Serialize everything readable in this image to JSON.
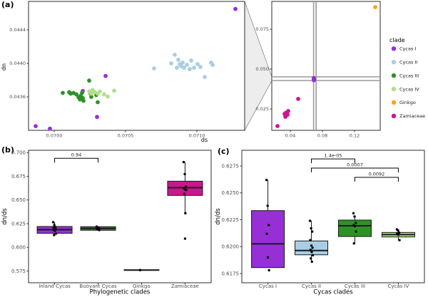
{
  "figure": {
    "panel_a_label": "(a)",
    "panel_b_label": "(b)",
    "panel_c_label": "(c)",
    "background": "#ffffff"
  },
  "palette": {
    "Cycas I": "#962FD6",
    "Cycas II": "#A9CEE4",
    "Cycas III": "#2E9125",
    "Cycas IV": "#B2DF8A",
    "Ginkgo": "#FFA40D",
    "Zamiaceae": "#CC1590"
  },
  "legend": {
    "title": "clade",
    "entries": [
      "Cycas I",
      "Cycas II",
      "Cycas III",
      "Cycas IV",
      "Ginkgo",
      "Zamiaceae"
    ]
  },
  "chart_data": [
    {
      "id": "a_main",
      "type": "scatter",
      "xlabel": "ds",
      "ylabel": "dn",
      "xlim": [
        0.06982,
        0.071335
      ],
      "ylim": [
        0.0432,
        0.04474
      ],
      "xticks": [
        0.07,
        0.0705,
        0.071
      ],
      "xtick_labels": [
        "0.0700",
        "0.0705",
        "0.0710"
      ],
      "yticks": [
        0.0436,
        0.044,
        0.0444
      ],
      "ytick_labels": [
        "0.0436",
        "0.0440",
        "0.0444"
      ],
      "series": [
        {
          "name": "Cycas I",
          "points": [
            [
              0.06987,
              0.04325
            ],
            [
              0.06997,
              0.04322
            ],
            [
              0.0702,
              0.04367
            ],
            [
              0.07036,
              0.04385
            ],
            [
              0.0703,
              0.04336
            ],
            [
              0.07127,
              0.04465
            ]
          ]
        },
        {
          "name": "Cycas III",
          "points": [
            [
              0.07006,
              0.043647
            ],
            [
              0.070105,
              0.043656
            ],
            [
              0.070115,
              0.043639
            ],
            [
              0.070135,
              0.043647
            ],
            [
              0.070155,
              0.04363
            ],
            [
              0.07017,
              0.043596
            ],
            [
              0.07018,
              0.04357
            ],
            [
              0.070185,
              0.043613
            ],
            [
              0.070195,
              0.043647
            ],
            [
              0.0702,
              0.043587
            ],
            [
              0.070205,
              0.043553
            ],
            [
              0.070245,
              0.043794
            ],
            [
              0.070255,
              0.043639
            ],
            [
              0.070295,
              0.043622
            ],
            [
              0.070305,
              0.043536
            ],
            [
              0.07026,
              0.0436
            ]
          ]
        },
        {
          "name": "Cycas IV",
          "points": [
            [
              0.070245,
              0.043664
            ],
            [
              0.07026,
              0.043639
            ],
            [
              0.07027,
              0.043682
            ],
            [
              0.070285,
              0.043656
            ],
            [
              0.070305,
              0.043639
            ],
            [
              0.07032,
              0.043664
            ],
            [
              0.07035,
              0.04363
            ],
            [
              0.070375,
              0.043604
            ],
            [
              0.07042,
              0.043673
            ]
          ]
        },
        {
          "name": "Cycas II",
          "points": [
            [
              0.0707,
              0.04394
            ],
            [
              0.07082,
              0.044
            ],
            [
              0.070845,
              0.044103
            ],
            [
              0.07086,
              0.043948
            ],
            [
              0.07087,
              0.044043
            ],
            [
              0.07088,
              0.043991
            ],
            [
              0.07089,
              0.043966
            ],
            [
              0.0709,
              0.044009
            ],
            [
              0.07091,
              0.043948
            ],
            [
              0.07093,
              0.043983
            ],
            [
              0.07095,
              0.043931
            ],
            [
              0.07096,
              0.044034
            ],
            [
              0.07098,
              0.043948
            ],
            [
              0.071005,
              0.043991
            ],
            [
              0.071025,
              0.043957
            ],
            [
              0.071055,
              0.043837
            ],
            [
              0.0711,
              0.044009
            ],
            [
              0.07111,
              0.043983
            ]
          ]
        }
      ]
    },
    {
      "id": "a_inset",
      "type": "scatter",
      "xlabel": "",
      "ylabel": "",
      "xlim": [
        0.01689,
        0.152
      ],
      "ylim": [
        0.01161,
        0.09241
      ],
      "xticks": [
        0.04,
        0.08,
        0.12
      ],
      "xtick_labels": [
        "0.04",
        "0.08",
        "0.12"
      ],
      "yticks": [
        0.025,
        0.05,
        0.075
      ],
      "ytick_labels": [
        "0.025",
        "0.050",
        "0.075"
      ],
      "zoom_box": {
        "x0": 0.06982,
        "x1": 0.071335,
        "y0": 0.0432,
        "y1": 0.04474
      },
      "series": [
        {
          "name": "Cycas I",
          "points": [
            [
              0.0693,
              0.043
            ],
            [
              0.0693,
              0.0437
            ],
            [
              0.0693,
              0.0444
            ],
            [
              0.0694,
              0.0433
            ],
            [
              0.0692,
              0.044
            ]
          ]
        },
        {
          "name": "Ginkgo",
          "points": [
            [
              0.1458,
              0.0888
            ]
          ]
        },
        {
          "name": "Zamiaceae",
          "points": [
            [
              0.0498,
              0.0313
            ],
            [
              0.0374,
              0.0237
            ],
            [
              0.0356,
              0.0228
            ],
            [
              0.0347,
              0.021
            ],
            [
              0.0338,
              0.0201
            ],
            [
              0.0329,
              0.0219
            ],
            [
              0.0365,
              0.0214
            ],
            [
              0.024,
              0.0143
            ],
            [
              0.0342,
              0.0225
            ],
            [
              0.0352,
              0.0218
            ]
          ]
        }
      ]
    },
    {
      "id": "b",
      "type": "box",
      "xlabel": "Phylogenetic clades",
      "ylabel": "dn/ds",
      "categories": [
        "Inland Cycas",
        "Buoyant Cycas",
        "Ginkgo",
        "Zamiaceae"
      ],
      "ylim": [
        0.56261,
        0.70243
      ],
      "yticks": [
        0.575,
        0.6,
        0.625,
        0.65,
        0.675,
        0.7
      ],
      "ytick_labels": [
        "0.575",
        "0.600",
        "0.625",
        "0.650",
        "0.675",
        "0.700"
      ],
      "boxes": [
        {
          "category": "Inland Cycas",
          "clade": "Cycas I",
          "q1": 0.6148,
          "q3": 0.622,
          "median": 0.6186,
          "whisker_low": 0.613,
          "whisker_high": 0.6265,
          "points": [
            0.6265,
            0.6235,
            0.6213,
            0.6205,
            0.6198,
            0.619,
            0.6182,
            0.6175,
            0.6145,
            0.613
          ],
          "outliers": []
        },
        {
          "category": "Buoyant Cycas",
          "clade": "Cycas III",
          "q1": 0.618,
          "q3": 0.6218,
          "median": 0.6199,
          "whisker_low": 0.6175,
          "whisker_high": 0.6222,
          "points": [
            0.6218,
            0.6208,
            0.6201,
            0.6196,
            0.619,
            0.6182
          ],
          "outliers": []
        },
        {
          "category": "Ginkgo",
          "clade": "Ginkgo",
          "q1": 0.5758,
          "q3": 0.5763,
          "median": 0.576,
          "whisker_low": 0.5755,
          "whisker_high": 0.5765,
          "points": [
            0.576
          ],
          "outliers": []
        },
        {
          "category": "Zamiaceae",
          "clade": "Zamiaceae",
          "q1": 0.6548,
          "q3": 0.6698,
          "median": 0.663,
          "whisker_low": 0.636,
          "whisker_high": 0.69,
          "points": [
            0.69,
            0.6773,
            0.664,
            0.6625,
            0.661,
            0.6605,
            0.6565,
            0.636
          ],
          "outliers": [
            0.6092
          ]
        }
      ],
      "brackets": [
        {
          "from": 0,
          "to": 1,
          "label": "0.94",
          "y": 0.694
        }
      ]
    },
    {
      "id": "c",
      "type": "box",
      "xlabel": "Cycas clades",
      "ylabel": "dn/ds",
      "categories": [
        "Cycas I",
        "Cycas II",
        "Cycas III",
        "Cycas IV"
      ],
      "ylim": [
        0.61664,
        0.62896
      ],
      "yticks": [
        0.6175,
        0.62,
        0.6225,
        0.625,
        0.6275
      ],
      "ytick_labels": [
        "0.6175",
        "0.6200",
        "0.6225",
        "0.6250",
        "0.6275"
      ],
      "boxes": [
        {
          "category": "Cycas I",
          "clade": "Cycas I",
          "q1": 0.61805,
          "q3": 0.62335,
          "median": 0.62026,
          "whisker_low": 0.61805,
          "whisker_high": 0.6262,
          "points": [
            0.6262,
            0.6238,
            0.622,
            0.6212,
            0.619,
            0.6178
          ],
          "outliers": []
        },
        {
          "category": "Cycas II",
          "clade": "Cycas II",
          "q1": 0.61924,
          "q3": 0.62053,
          "median": 0.61964,
          "whisker_low": 0.61854,
          "whisker_high": 0.6224,
          "points": [
            0.6224,
            0.6217,
            0.6214,
            0.6206,
            0.6201,
            0.6199,
            0.6197,
            0.6195,
            0.6192,
            0.6189,
            0.6186
          ],
          "outliers": []
        },
        {
          "category": "Cycas III",
          "clade": "Cycas III",
          "q1": 0.62094,
          "q3": 0.62247,
          "median": 0.62194,
          "whisker_low": 0.6203,
          "whisker_high": 0.6228,
          "points": [
            0.6231,
            0.6228,
            0.6222,
            0.622,
            0.6219,
            0.6214,
            0.6203
          ],
          "outliers": []
        },
        {
          "category": "Cycas IV",
          "clade": "Cycas IV",
          "q1": 0.6209,
          "q3": 0.62132,
          "median": 0.62112,
          "whisker_low": 0.6206,
          "whisker_high": 0.6216,
          "points": [
            0.6216,
            0.6215,
            0.6213,
            0.6212,
            0.6211,
            0.6206
          ],
          "outliers": []
        }
      ],
      "brackets": [
        {
          "from": 1,
          "to": 2,
          "label": "1.4e-05",
          "y": 0.62816
        },
        {
          "from": 1,
          "to": 3,
          "label": "0.0007",
          "y": 0.6273
        },
        {
          "from": 2,
          "to": 3,
          "label": "0.0092",
          "y": 0.62644
        }
      ]
    }
  ]
}
